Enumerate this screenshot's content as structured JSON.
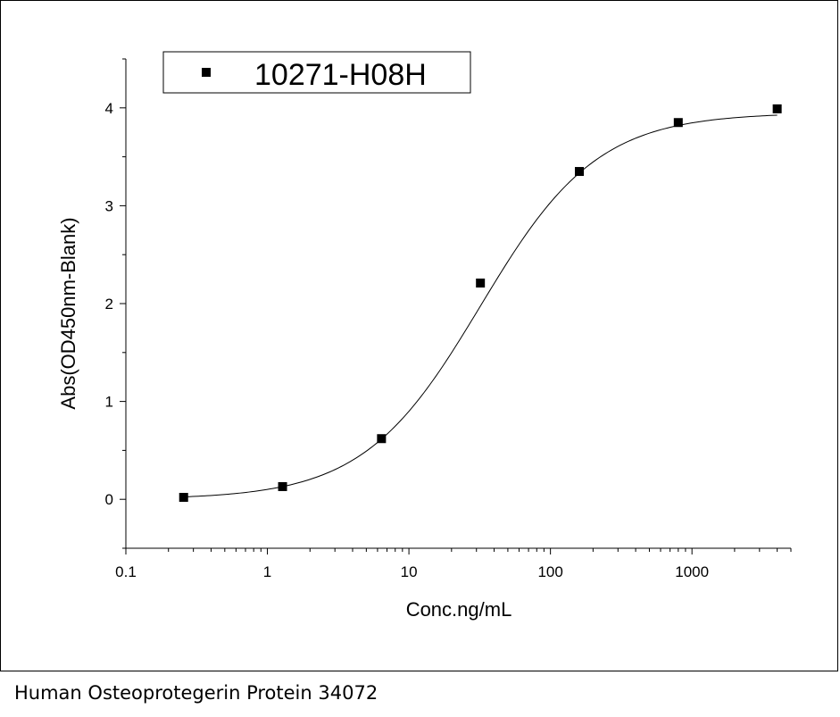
{
  "caption": "Human Osteoprotegerin Protein 34072",
  "chart_data": {
    "type": "scatter",
    "xscale": "log",
    "xlabel": "Conc.ng/mL",
    "ylabel": "Abs(OD450nm-Blank)",
    "xlim": [
      0.1,
      5000
    ],
    "ylim": [
      -0.5,
      4.5
    ],
    "x_ticks": [
      0.1,
      1,
      10,
      100,
      1000
    ],
    "x_tick_labels": [
      "0.1",
      "1",
      "10",
      "100",
      "1000"
    ],
    "y_ticks": [
      0,
      1,
      2,
      3,
      4
    ],
    "y_tick_labels": [
      "0",
      "1",
      "2",
      "3",
      "4"
    ],
    "legend_position": "top-left",
    "series": [
      {
        "name": "10271-H08H",
        "marker": "square",
        "color": "#000000",
        "x": [
          0.256,
          1.28,
          6.4,
          32,
          160,
          800,
          4000
        ],
        "y": [
          0.02,
          0.13,
          0.62,
          2.21,
          3.35,
          3.85,
          3.99
        ]
      }
    ],
    "fit": {
      "type": "4PL",
      "bottom": 0.0,
      "top": 3.95,
      "ec50": 32,
      "hill": 1.05,
      "color": "#000000"
    }
  }
}
